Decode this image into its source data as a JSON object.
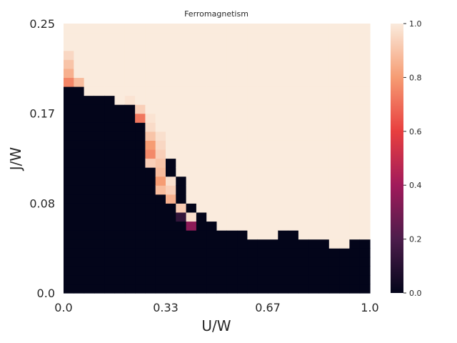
{
  "chart_data": {
    "type": "heatmap",
    "title": "Ferromagnetism",
    "xlabel": "U/W",
    "ylabel": "J/W",
    "x_ticks": [
      "0.0",
      "0.33",
      "0.67",
      "1.0"
    ],
    "y_ticks": [
      "0.25",
      "0.17",
      "0.08",
      "0.0"
    ],
    "xlim": [
      0,
      1
    ],
    "ylim": [
      0,
      0.25
    ],
    "n_columns": 30,
    "n_rows": 30,
    "boundary_rows_per_column": [
      23,
      23,
      22,
      22,
      22,
      21,
      21,
      19,
      18,
      17,
      15,
      13,
      10,
      9,
      8,
      7,
      7,
      7,
      6,
      6,
      6,
      7,
      7,
      6,
      6,
      6,
      5,
      5,
      6,
      6
    ],
    "transition_cells": [
      {
        "column": 0,
        "row": 23,
        "value": 0.75
      },
      {
        "column": 0,
        "row": 24,
        "value": 0.85
      },
      {
        "column": 0,
        "row": 25,
        "value": 0.9
      },
      {
        "column": 0,
        "row": 26,
        "value": 0.95
      },
      {
        "column": 1,
        "row": 23,
        "value": 0.88
      },
      {
        "column": 6,
        "row": 21,
        "value": 0.98
      },
      {
        "column": 7,
        "row": 19,
        "value": 0.72
      },
      {
        "column": 7,
        "row": 20,
        "value": 0.93
      },
      {
        "column": 8,
        "row": 18,
        "value": 0.96
      },
      {
        "column": 8,
        "row": 19,
        "value": 0.98
      },
      {
        "column": 8,
        "row": 17,
        "value": 0.9
      },
      {
        "column": 8,
        "row": 16,
        "value": 0.8
      },
      {
        "column": 8,
        "row": 15,
        "value": 0.76
      },
      {
        "column": 8,
        "row": 14,
        "value": 0.93
      },
      {
        "column": 9,
        "row": 17,
        "value": 0.97
      },
      {
        "column": 9,
        "row": 16,
        "value": 0.95
      },
      {
        "column": 9,
        "row": 15,
        "value": 0.93
      },
      {
        "column": 9,
        "row": 14,
        "value": 0.9
      },
      {
        "column": 9,
        "row": 13,
        "value": 0.88
      },
      {
        "column": 9,
        "row": 12,
        "value": 0.8
      },
      {
        "column": 9,
        "row": 11,
        "value": 0.88
      },
      {
        "column": 10,
        "row": 12,
        "value": 0.97
      },
      {
        "column": 10,
        "row": 11,
        "value": 0.93
      },
      {
        "column": 10,
        "row": 10,
        "value": 0.85
      },
      {
        "column": 11,
        "row": 9,
        "value": 0.92
      },
      {
        "column": 11,
        "row": 8,
        "value": 0.13
      },
      {
        "column": 12,
        "row": 8,
        "value": 0.97
      },
      {
        "column": 12,
        "row": 7,
        "value": 0.35
      }
    ],
    "colorbar": {
      "ticks": [
        "0.0",
        "0.2",
        "0.4",
        "0.6",
        "0.8",
        "1.0"
      ],
      "range": [
        0,
        1
      ],
      "colors": [
        "#03051a",
        "#4c1d4b",
        "#a11a5b",
        "#e83f3f",
        "#f69c73",
        "#faebdd"
      ]
    }
  }
}
